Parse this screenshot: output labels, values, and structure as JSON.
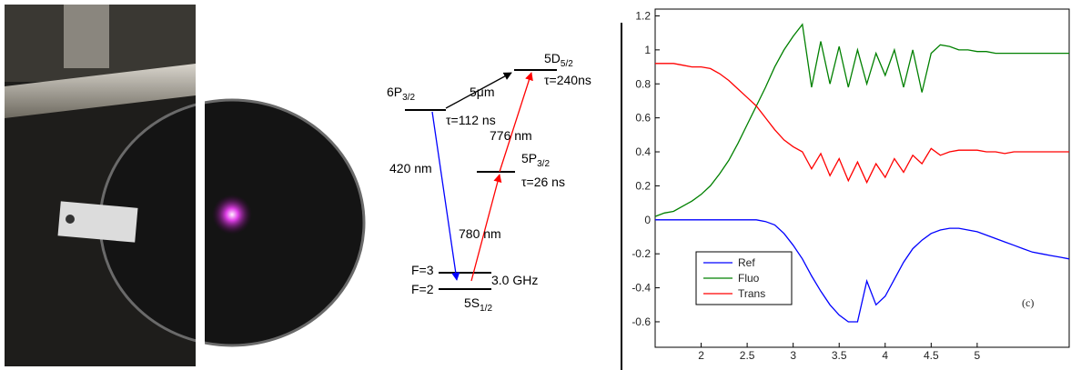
{
  "diagram": {
    "levels": [
      {
        "name": {
          "main": "5D",
          "sub": "5/2"
        },
        "lifetime": "τ=240ns"
      },
      {
        "name": {
          "main": "6P",
          "sub": "3/2"
        },
        "lifetime": "τ=112 ns"
      },
      {
        "name": {
          "main": "5P",
          "sub": "3/2"
        },
        "lifetime": "τ=26 ns"
      },
      {
        "name": {
          "main": "5S",
          "sub": "1/2"
        }
      }
    ],
    "hyperfine": [
      "F=3",
      "F=2"
    ],
    "splitting": "3.0 GHz",
    "transitions": [
      "5μm",
      "420 nm",
      "780 nm",
      "776 nm"
    ]
  },
  "chart_data": {
    "type": "line",
    "annotation": "(c)",
    "x": [
      1.5,
      1.6,
      1.7,
      1.8,
      1.9,
      2.0,
      2.1,
      2.2,
      2.3,
      2.4,
      2.5,
      2.6,
      2.7,
      2.8,
      2.9,
      3.0,
      3.1,
      3.2,
      3.3,
      3.4,
      3.5,
      3.6,
      3.7,
      3.8,
      3.9,
      4.0,
      4.1,
      4.2,
      4.3,
      4.4,
      4.5,
      4.6,
      4.7,
      4.8,
      4.9,
      5.0,
      5.1,
      5.2,
      5.3,
      5.4,
      5.5,
      5.6,
      5.7,
      5.8,
      5.9,
      6.0
    ],
    "series": [
      {
        "name": "Ref",
        "color": "#0000ff",
        "values": [
          0,
          0,
          0,
          0,
          0,
          0,
          0,
          0,
          0,
          0,
          0,
          0,
          -0.01,
          -0.03,
          -0.08,
          -0.15,
          -0.23,
          -0.33,
          -0.42,
          -0.5,
          -0.56,
          -0.6,
          -0.6,
          -0.36,
          -0.5,
          -0.45,
          -0.35,
          -0.25,
          -0.17,
          -0.12,
          -0.08,
          -0.06,
          -0.05,
          -0.05,
          -0.06,
          -0.07,
          -0.09,
          -0.11,
          -0.13,
          -0.15,
          -0.17,
          -0.19,
          -0.2,
          -0.21,
          -0.22,
          -0.23
        ]
      },
      {
        "name": "Fluo",
        "color": "#008000",
        "values": [
          0.02,
          0.04,
          0.05,
          0.08,
          0.11,
          0.15,
          0.2,
          0.27,
          0.35,
          0.45,
          0.56,
          0.67,
          0.78,
          0.9,
          1.0,
          1.08,
          1.15,
          0.78,
          1.05,
          0.8,
          1.02,
          0.78,
          1.0,
          0.8,
          0.98,
          0.85,
          1.0,
          0.78,
          1.0,
          0.75,
          0.98,
          1.03,
          1.02,
          1.0,
          1.0,
          0.99,
          0.99,
          0.98,
          0.98,
          0.98,
          0.98,
          0.98,
          0.98,
          0.98,
          0.98,
          0.98
        ]
      },
      {
        "name": "Trans",
        "color": "#ff0000",
        "values": [
          0.92,
          0.92,
          0.92,
          0.91,
          0.9,
          0.9,
          0.89,
          0.86,
          0.82,
          0.77,
          0.72,
          0.67,
          0.6,
          0.53,
          0.47,
          0.43,
          0.4,
          0.3,
          0.39,
          0.26,
          0.36,
          0.23,
          0.34,
          0.22,
          0.33,
          0.25,
          0.36,
          0.28,
          0.38,
          0.33,
          0.42,
          0.38,
          0.4,
          0.41,
          0.41,
          0.41,
          0.4,
          0.4,
          0.39,
          0.4,
          0.4,
          0.4,
          0.4,
          0.4,
          0.4,
          0.4
        ]
      }
    ],
    "xlim": [
      1.5,
      6.0
    ],
    "ylim": [
      -0.75,
      1.24
    ],
    "xticks": [
      2,
      2.5,
      3,
      3.5,
      4,
      4.5,
      5
    ],
    "yticks": [
      -0.6,
      -0.4,
      -0.2,
      0,
      0.2,
      0.4,
      0.6,
      0.8,
      1,
      1.2
    ],
    "legend": "lower left"
  }
}
